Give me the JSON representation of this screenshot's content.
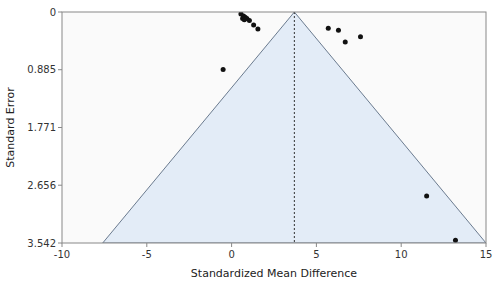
{
  "chart_data": {
    "type": "scatter",
    "xlabel": "Standardized Mean Difference",
    "ylabel": "Standard Error",
    "xlim": [
      -10,
      15
    ],
    "ylim": [
      3.542,
      0
    ],
    "xticks": [
      -10,
      -5,
      0,
      5,
      10,
      15
    ],
    "yticks": [
      0,
      0.885,
      1.771,
      2.656,
      3.542
    ],
    "funnel": {
      "apex_x": 3.7,
      "apex_y": 0.0,
      "base_y": 3.542,
      "left_x": -7.6,
      "right_x": 15.0
    },
    "reference_line": 3.7,
    "color": "#111111",
    "x": [
      0.55,
      0.7,
      0.8,
      0.65,
      0.9,
      0.75,
      1.05,
      1.3,
      1.55,
      5.7,
      6.3,
      7.6,
      6.7,
      -0.5,
      11.5,
      13.2
    ],
    "values": [
      0.03,
      0.06,
      0.08,
      0.1,
      0.1,
      0.12,
      0.13,
      0.2,
      0.26,
      0.25,
      0.28,
      0.38,
      0.46,
      0.88,
      2.82,
      3.5
    ]
  }
}
